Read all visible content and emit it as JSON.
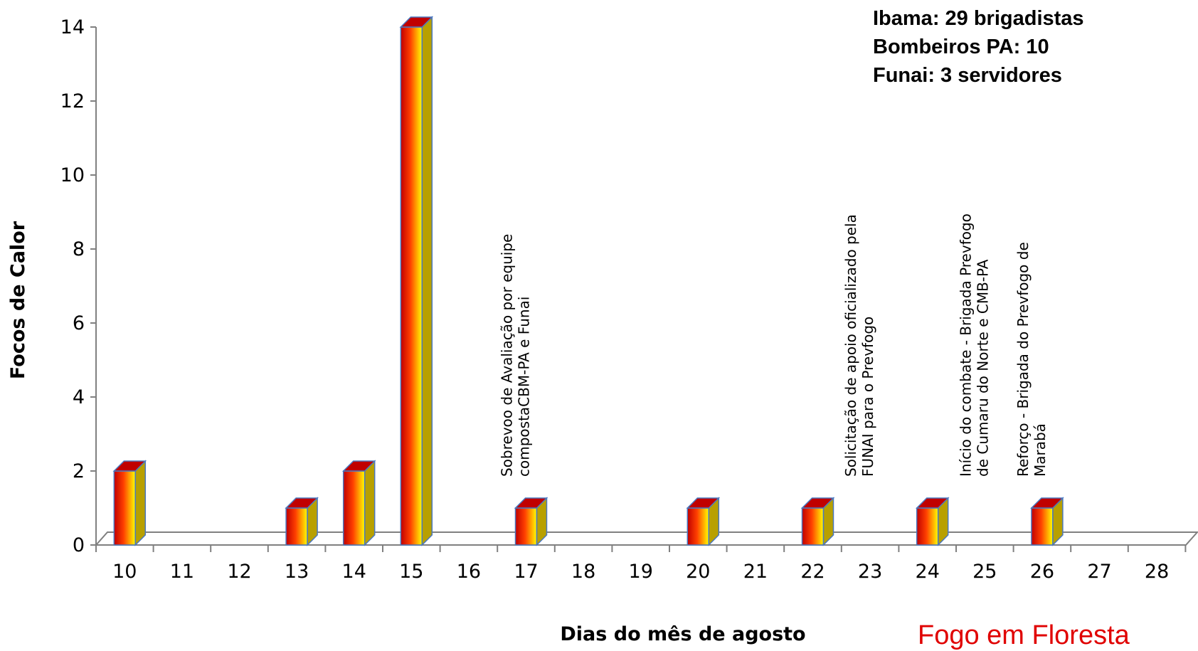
{
  "chart_data": {
    "type": "bar",
    "title": "",
    "xlabel": "Dias do mês de agosto",
    "ylabel": "Focos de Calor",
    "categories": [
      "10",
      "11",
      "12",
      "13",
      "14",
      "15",
      "16",
      "17",
      "18",
      "19",
      "20",
      "21",
      "22",
      "23",
      "24",
      "25",
      "26",
      "27",
      "28"
    ],
    "values": [
      2,
      0,
      0,
      1,
      2,
      14,
      0,
      1,
      0,
      0,
      1,
      0,
      1,
      0,
      1,
      0,
      1,
      0,
      0
    ],
    "ylim": [
      0,
      14
    ],
    "yticks": [
      0,
      2,
      4,
      6,
      8,
      10,
      12,
      14
    ],
    "bar_style": "3d-column-gradient",
    "colors": {
      "bar_top": "#c00000",
      "bar_mid": "#ff4000",
      "bar_bottom": "#ffff00",
      "bar_side": "#b8a000",
      "bar_outline": "#4a78c0",
      "floor": "#808080"
    },
    "annotations": [
      {
        "day": "17",
        "lines": [
          "Sobrevoo de Avaliação por equipe",
          "compostaCBM-PA e Funai"
        ]
      },
      {
        "day": "23",
        "lines": [
          "Solicitação de apoio oficializado pela",
          "FUNAI para o Prevfogo"
        ]
      },
      {
        "day": "25",
        "lines": [
          "Início do combate  - Brigada Prevfogo",
          "de Cumaru do Norte e CMB-PA"
        ]
      },
      {
        "day": "26",
        "lines": [
          "Reforço - Brigada do Prevfogo de",
          "Marabá"
        ]
      }
    ]
  },
  "info_box": {
    "lines": [
      "Ibama: 29 brigadistas",
      "Bombeiros PA: 10",
      "Funai: 3 servidores"
    ]
  },
  "footer_title": "Fogo em Floresta"
}
